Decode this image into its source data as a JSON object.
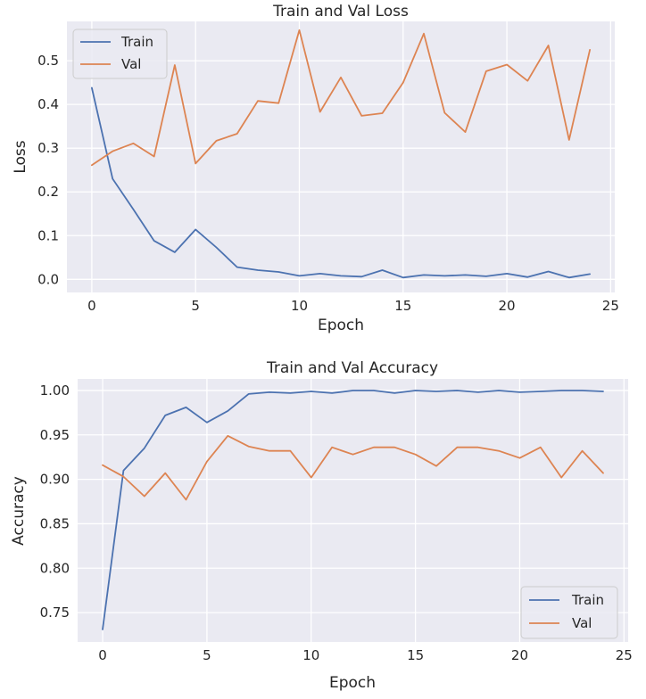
{
  "chart_data": [
    {
      "type": "line",
      "title": "Train and Val Loss",
      "xlabel": "Epoch",
      "ylabel": "Loss",
      "xlim": [
        -1.2,
        25.2
      ],
      "ylim": [
        -0.03,
        0.59
      ],
      "xticks": [
        0,
        5,
        10,
        15,
        20,
        25
      ],
      "yticks": [
        0.0,
        0.1,
        0.2,
        0.3,
        0.4,
        0.5
      ],
      "ytick_labels": [
        "0.0",
        "0.1",
        "0.2",
        "0.3",
        "0.4",
        "0.5"
      ],
      "grid": true,
      "legend": "upper-left",
      "x": [
        0,
        1,
        2,
        3,
        4,
        5,
        6,
        7,
        8,
        9,
        10,
        11,
        12,
        13,
        14,
        15,
        16,
        17,
        18,
        19,
        20,
        21,
        22,
        23,
        24
      ],
      "series": [
        {
          "name": "Train",
          "color": "#4c72b0",
          "values": [
            0.438,
            0.23,
            0.16,
            0.088,
            0.062,
            0.114,
            0.073,
            0.028,
            0.021,
            0.017,
            0.008,
            0.013,
            0.008,
            0.006,
            0.021,
            0.004,
            0.01,
            0.008,
            0.01,
            0.007,
            0.013,
            0.005,
            0.018,
            0.004,
            0.012
          ]
        },
        {
          "name": "Val",
          "color": "#dd8452",
          "values": [
            0.261,
            0.293,
            0.311,
            0.281,
            0.49,
            0.265,
            0.317,
            0.333,
            0.408,
            0.403,
            0.57,
            0.383,
            0.462,
            0.374,
            0.38,
            0.45,
            0.562,
            0.381,
            0.337,
            0.476,
            0.491,
            0.454,
            0.535,
            0.319,
            0.525
          ]
        }
      ]
    },
    {
      "type": "line",
      "title": "Train and Val Accuracy",
      "xlabel": "Epoch",
      "ylabel": "Accuracy",
      "xlim": [
        -1.2,
        25.2
      ],
      "ylim": [
        0.717,
        1.013
      ],
      "xticks": [
        0,
        5,
        10,
        15,
        20,
        25
      ],
      "yticks": [
        0.75,
        0.8,
        0.85,
        0.9,
        0.95,
        1.0
      ],
      "ytick_labels": [
        "0.75",
        "0.80",
        "0.85",
        "0.90",
        "0.95",
        "1.00"
      ],
      "grid": true,
      "legend": "lower-right",
      "x": [
        0,
        1,
        2,
        3,
        4,
        5,
        6,
        7,
        8,
        9,
        10,
        11,
        12,
        13,
        14,
        15,
        16,
        17,
        18,
        19,
        20,
        21,
        22,
        23,
        24
      ],
      "series": [
        {
          "name": "Train",
          "color": "#4c72b0",
          "values": [
            0.731,
            0.91,
            0.935,
            0.972,
            0.981,
            0.964,
            0.977,
            0.996,
            0.998,
            0.997,
            0.999,
            0.997,
            1.0,
            1.0,
            0.997,
            1.0,
            0.999,
            1.0,
            0.998,
            1.0,
            0.998,
            0.999,
            1.0,
            1.0,
            0.999
          ]
        },
        {
          "name": "Val",
          "color": "#dd8452",
          "values": [
            0.916,
            0.903,
            0.881,
            0.907,
            0.877,
            0.92,
            0.949,
            0.937,
            0.932,
            0.932,
            0.902,
            0.936,
            0.928,
            0.936,
            0.936,
            0.928,
            0.915,
            0.936,
            0.936,
            0.932,
            0.924,
            0.936,
            0.902,
            0.932,
            0.907
          ]
        }
      ]
    }
  ]
}
